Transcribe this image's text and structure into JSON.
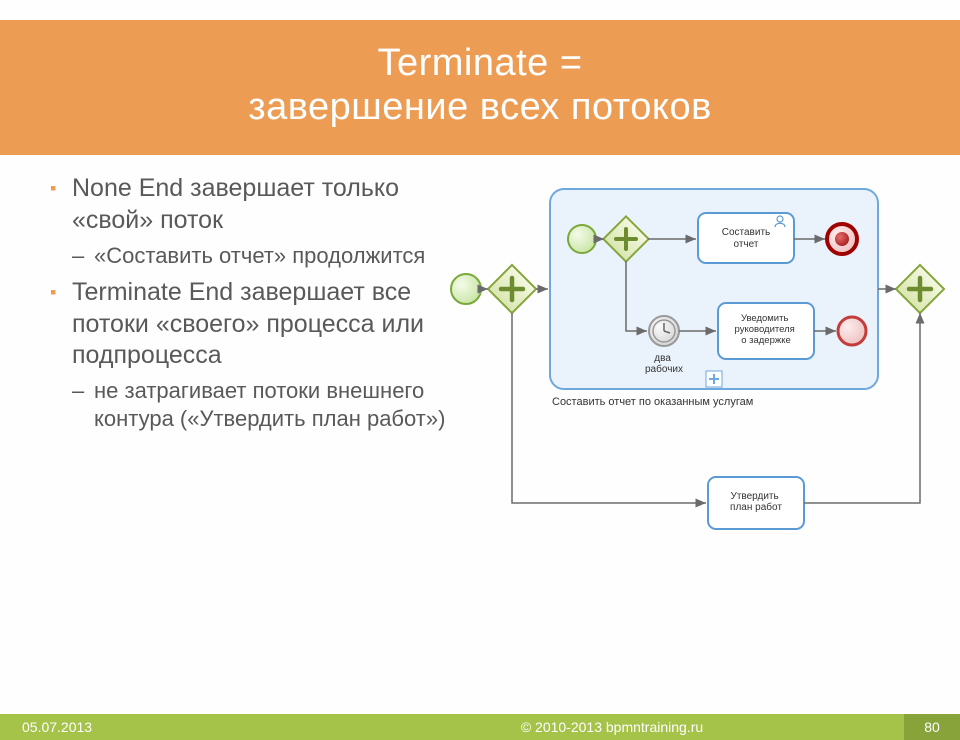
{
  "title": {
    "line1": "Terminate =",
    "line2": "завершение всех потоков"
  },
  "bullets": [
    {
      "lvl": 1,
      "text": "None End завершает только «свой» поток"
    },
    {
      "lvl": 2,
      "text": "«Составить отчет» продолжится"
    },
    {
      "lvl": 1,
      "text": "Terminate End завершает все потоки «своего» процесса или подпроцесса"
    },
    {
      "lvl": 2,
      "text": "не затрагивает потоки внешнего контура («Утвердить план работ»)"
    }
  ],
  "diagram": {
    "subprocess_label": "Составить отчет по оказанным услугам",
    "task_top": "Составить отчет",
    "task_mid": "Уведомить руководителя о задержке",
    "task_bottom": "Утвердить план работ",
    "timer_label": "два рабочих",
    "colors": {
      "outer_border": "#9cc3e6",
      "subprocess_border": "#6fa8dc",
      "subprocess_fill": "#eaf3fb",
      "task_border": "#5b9bd5",
      "task_fill": "#ffffff",
      "start_stroke": "#7aa83a",
      "start_fill": "#d6eec1",
      "gateway_stroke": "#86a63d",
      "gateway_fill": "#e7f0c8",
      "end_stroke": "#c33d3d",
      "end_fill": "#f5d2d2",
      "terminate_stroke": "#a00000",
      "terminate_fill": "#c33d3d",
      "timer_stroke": "#999999",
      "timer_fill": "#e8e8e8",
      "arrow": "#6b6b6b"
    }
  },
  "footer": {
    "date": "05.07.2013",
    "copyright": "© 2010-2013 bpmntraining.ru",
    "page": "80"
  }
}
